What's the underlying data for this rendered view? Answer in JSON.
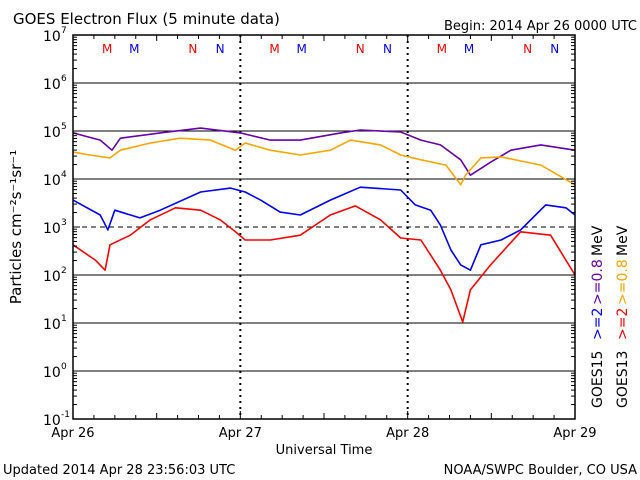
{
  "chart_data": {
    "type": "line",
    "title": "GOES Electron Flux (5 minute data)",
    "begin_label": "Begin: 2014 Apr 26 0000 UTC",
    "xlabel": "Universal Time",
    "ylabel": "Particles cm⁻²s⁻¹sr⁻¹",
    "y_scale": "log",
    "ylim_exponents": [
      -1,
      7
    ],
    "y_tick_labels": [
      {
        "base": "10",
        "exp": "7",
        "value_exp": 7
      },
      {
        "base": "10",
        "exp": "6",
        "value_exp": 6
      },
      {
        "base": "10",
        "exp": "5",
        "value_exp": 5
      },
      {
        "base": "10",
        "exp": "4",
        "value_exp": 4
      },
      {
        "base": "10",
        "exp": "3",
        "value_exp": 3
      },
      {
        "base": "10",
        "exp": "2",
        "value_exp": 2
      },
      {
        "base": "10",
        "exp": "1",
        "value_exp": 1
      },
      {
        "base": "10",
        "exp": "0",
        "value_exp": 0
      },
      {
        "base": "10",
        "exp": "-1",
        "value_exp": -1
      }
    ],
    "x_range_hours": [
      0,
      72
    ],
    "x_tick_labels": [
      {
        "label": "Apr 26",
        "hour": 0
      },
      {
        "label": "Apr 27",
        "hour": 24
      },
      {
        "label": "Apr 28",
        "hour": 48
      },
      {
        "label": "Apr 29",
        "hour": 72
      }
    ],
    "dashed_threshold_exp": 3,
    "midnight_noon_markers": [
      {
        "label": "M",
        "hour": 4.9,
        "color": "#ff0000"
      },
      {
        "label": "M",
        "hour": 8.8,
        "color": "#0000ff"
      },
      {
        "label": "N",
        "hour": 17.2,
        "color": "#ff0000"
      },
      {
        "label": "N",
        "hour": 21.1,
        "color": "#0000ff"
      },
      {
        "label": "M",
        "hour": 28.9,
        "color": "#ff0000"
      },
      {
        "label": "M",
        "hour": 32.8,
        "color": "#0000ff"
      },
      {
        "label": "N",
        "hour": 41.2,
        "color": "#ff0000"
      },
      {
        "label": "N",
        "hour": 45.1,
        "color": "#0000ff"
      },
      {
        "label": "M",
        "hour": 52.9,
        "color": "#ff0000"
      },
      {
        "label": "M",
        "hour": 56.8,
        "color": "#0000ff"
      },
      {
        "label": "N",
        "hour": 65.2,
        "color": "#ff0000"
      },
      {
        "label": "N",
        "hour": 69.1,
        "color": "#0000ff"
      }
    ],
    "legend": {
      "placement": "right",
      "satellite_15": "GOES15",
      "satellite_13": "GOES13",
      "g15_ge2": ">=2",
      "g13_ge2": ">=2",
      "g15_ge08": ">=0.8",
      "g13_ge08": ">=0.8",
      "unit_1": "MeV",
      "unit_2": "MeV"
    },
    "series": [
      {
        "name": "GOES15 >=0.8 MeV",
        "color": "#6600aa",
        "hours": [
          0,
          3.9,
          5.6,
          6.8,
          12.5,
          18.3,
          24.0,
          28.3,
          32.6,
          38.4,
          41.2,
          47.0,
          49.9,
          52.7,
          55.6,
          57.0,
          59.9,
          62.8,
          67.1,
          72
        ],
        "log10_flux": [
          4.96,
          4.81,
          4.6,
          4.85,
          4.96,
          5.06,
          4.96,
          4.81,
          4.81,
          4.96,
          5.02,
          4.98,
          4.81,
          4.71,
          4.4,
          4.08,
          4.35,
          4.6,
          4.71,
          4.6
        ]
      },
      {
        "name": "GOES13 >=0.8 MeV",
        "color": "#ffa500",
        "hours": [
          0,
          2.4,
          5.3,
          6.8,
          11.1,
          15.4,
          19.7,
          23.3,
          24.7,
          28.3,
          32.6,
          36.9,
          39.8,
          44.1,
          47.0,
          49.9,
          53.5,
          55.6,
          56.3,
          58.5,
          61.4,
          67.1,
          72
        ],
        "log10_flux": [
          4.56,
          4.5,
          4.44,
          4.6,
          4.75,
          4.85,
          4.81,
          4.6,
          4.75,
          4.6,
          4.5,
          4.6,
          4.81,
          4.71,
          4.5,
          4.4,
          4.29,
          3.88,
          4.08,
          4.44,
          4.46,
          4.29,
          3.88
        ]
      },
      {
        "name": "GOES15 >=2 MeV",
        "color": "#0000ff",
        "hours": [
          0,
          3.9,
          5.0,
          6.0,
          9.6,
          12.5,
          18.3,
          22.6,
          24.7,
          26.9,
          29.7,
          32.6,
          36.9,
          41.2,
          47.0,
          49.1,
          51.3,
          52.7,
          54.2,
          55.6,
          57.0,
          58.5,
          61.4,
          64.2,
          67.8,
          70.7,
          72
        ],
        "log10_flux": [
          3.56,
          3.25,
          2.94,
          3.35,
          3.19,
          3.35,
          3.73,
          3.81,
          3.73,
          3.56,
          3.31,
          3.25,
          3.56,
          3.83,
          3.77,
          3.46,
          3.35,
          3.04,
          2.52,
          2.21,
          2.1,
          2.63,
          2.73,
          2.94,
          3.46,
          3.4,
          3.25
        ]
      },
      {
        "name": "GOES13 >=2 MeV",
        "color": "#ff0000",
        "hours": [
          0,
          3.2,
          4.6,
          5.3,
          8.2,
          11.1,
          14.7,
          18.3,
          21.1,
          23.3,
          24.7,
          28.3,
          32.6,
          36.9,
          40.5,
          44.1,
          47.0,
          49.9,
          52.7,
          54.2,
          55.9,
          57.0,
          59.9,
          64.2,
          68.5,
          72
        ],
        "log10_flux": [
          2.63,
          2.31,
          2.1,
          2.63,
          2.83,
          3.15,
          3.4,
          3.35,
          3.15,
          2.9,
          2.73,
          2.73,
          2.83,
          3.25,
          3.44,
          3.15,
          2.77,
          2.73,
          2.1,
          1.69,
          1.02,
          1.69,
          2.21,
          2.9,
          2.83,
          2.0
        ]
      }
    ]
  },
  "footer": {
    "updated": "Updated 2014 Apr 28 23:56:03 UTC",
    "credit": "NOAA/SWPC Boulder, CO USA"
  }
}
